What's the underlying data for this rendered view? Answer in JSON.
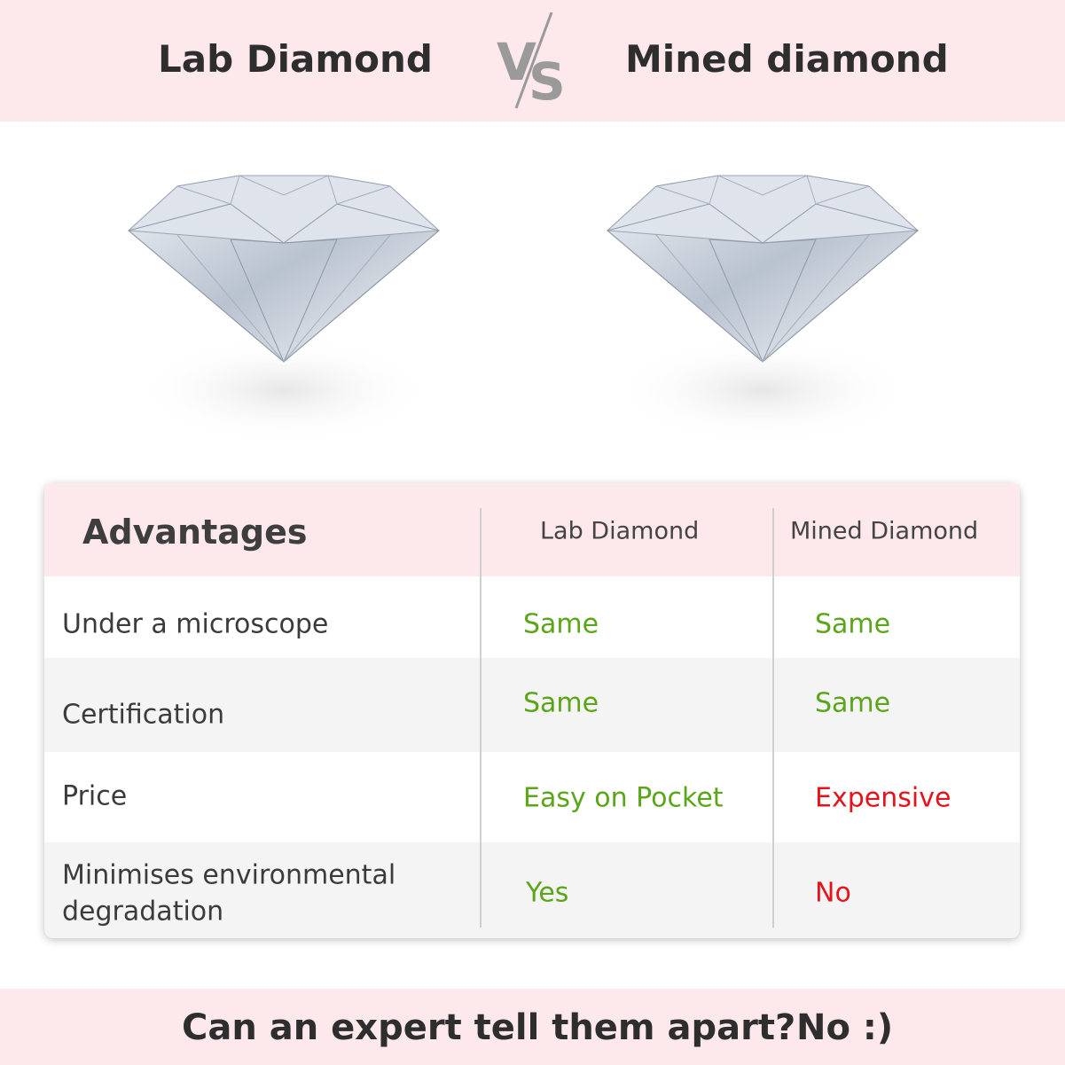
{
  "header": {
    "left_title": "Lab Diamond",
    "vs_logo": "VS",
    "right_title": "Mined diamond"
  },
  "images": [
    "lab-diamond-image",
    "mined-diamond-image"
  ],
  "table": {
    "headers": [
      "Advantages",
      "Lab Diamond",
      "Mined Diamond"
    ],
    "rows": [
      {
        "label": "Under a microscope",
        "lab": "Same",
        "mined": "Same",
        "lab_status": "positive",
        "mined_status": "positive"
      },
      {
        "label": "Certification",
        "lab": "Same",
        "mined": "Same",
        "lab_status": "positive",
        "mined_status": "positive"
      },
      {
        "label": "Price",
        "lab": "Easy on Pocket",
        "mined": "Expensive",
        "lab_status": "positive",
        "mined_status": "negative"
      },
      {
        "label_line1": "Minimises environmental",
        "label_line2": "degradation",
        "lab": "Yes",
        "mined": "No",
        "lab_status": "positive",
        "mined_status": "negative"
      }
    ]
  },
  "footer": {
    "question": "Can an expert tell them apart?",
    "answer": "No :)"
  },
  "colors": {
    "band": "#fde8ec",
    "positive": "#5aa618",
    "negative": "#e5141c",
    "row_alt": "#f4f4f4"
  }
}
